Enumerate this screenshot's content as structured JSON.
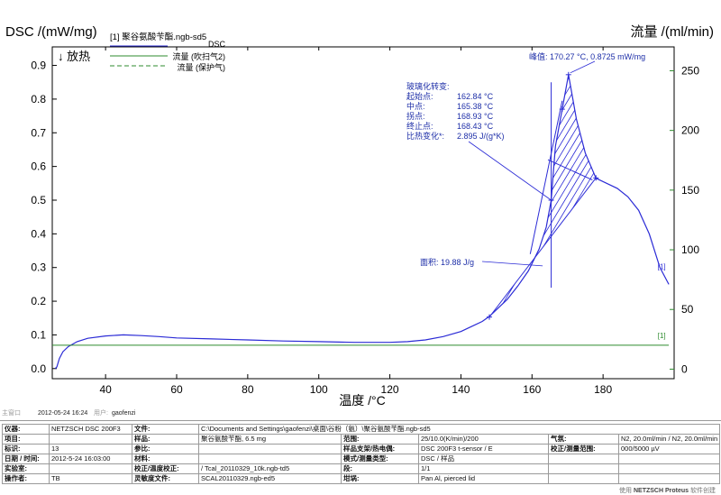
{
  "chart_data": {
    "type": "line",
    "title": "[1] 聚谷氨酸苄酯.ngb-sd5",
    "ylabel_left": "DSC /(mW/mg)",
    "ylabel_right": "流量 /(ml/min)",
    "xlabel": "温度 /°C",
    "exo_label": "↓ 放热",
    "xlim": [
      25,
      200
    ],
    "ylim_left": [
      -0.03,
      0.955
    ],
    "ylim_right": [
      -8,
      270
    ],
    "x_ticks": [
      40,
      60,
      80,
      100,
      120,
      140,
      160,
      180
    ],
    "y_ticks_left": [
      0.0,
      0.1,
      0.2,
      0.3,
      0.4,
      0.5,
      0.6,
      0.7,
      0.8,
      0.9
    ],
    "y_ticks_left_labels": [
      "0.0",
      "0.1",
      "0.2",
      "0.3",
      "0.4",
      "0.5",
      "0.6",
      "0.7",
      "0.8",
      "0.9"
    ],
    "y_ticks_right": [
      0,
      50,
      100,
      150,
      200,
      250
    ],
    "legend": [
      {
        "name": "DSC",
        "style": "solid",
        "color": "#2b2bd6"
      },
      {
        "name": "流量 (吹扫气2)",
        "style": "solid",
        "color": "#2e8b2e"
      },
      {
        "name": "流量 (保护气)",
        "style": "dashed",
        "color": "#2e8b2e"
      }
    ],
    "series": [
      {
        "name": "DSC",
        "x": [
          25.8,
          26.3,
          27,
          28,
          29.5,
          32,
          35,
          40,
          45,
          50,
          55,
          60,
          70,
          80,
          90,
          100,
          110,
          120,
          125,
          130,
          135,
          140,
          143,
          146,
          148,
          150,
          153,
          156,
          159,
          162,
          164,
          165.4,
          166,
          166.6,
          168.5,
          170.27,
          172.5,
          175,
          178,
          181,
          184,
          187,
          190,
          193,
          196,
          198.5
        ],
        "y": [
          0.0,
          0.005,
          0.03,
          0.05,
          0.065,
          0.08,
          0.09,
          0.097,
          0.1,
          0.098,
          0.095,
          0.091,
          0.088,
          0.085,
          0.082,
          0.08,
          0.078,
          0.078,
          0.08,
          0.085,
          0.095,
          0.11,
          0.125,
          0.14,
          0.155,
          0.175,
          0.205,
          0.245,
          0.29,
          0.355,
          0.42,
          0.5,
          0.58,
          0.66,
          0.77,
          0.8725,
          0.74,
          0.64,
          0.565,
          0.55,
          0.535,
          0.51,
          0.47,
          0.4,
          0.3,
          0.25
        ]
      },
      {
        "name": "流量 (吹扫气2)",
        "x": [
          25,
          198.5
        ],
        "y": [
          20,
          20
        ]
      }
    ],
    "baseline": {
      "x": [
        148,
        178
      ],
      "y": [
        0.153,
        0.566
      ]
    },
    "tg_step_line": {
      "x": [
        159.5,
        168.5
      ],
      "y": [
        0.34,
        0.795
      ]
    },
    "tangent_upper": {
      "x": [
        164.5,
        177
      ],
      "y": [
        0.62,
        0.56
      ]
    },
    "vertical_marker": {
      "x": [
        165.4,
        165.4
      ],
      "y": [
        0.24,
        0.85
      ]
    },
    "line_markers": [
      {
        "x": 148.0,
        "y": 0.153
      },
      {
        "x": 178.0,
        "y": 0.566
      },
      {
        "x": 170.27,
        "y": 0.8725
      },
      {
        "x": 165.4,
        "y": 0.5
      },
      {
        "x": 168.5,
        "y": 0.77
      }
    ],
    "right_end_labels": [
      {
        "text": "[1]",
        "x": 196.5,
        "y": 0.295,
        "color": "#2b2bd6"
      },
      {
        "text": "[1]",
        "x": 196.5,
        "y": 0.09,
        "color": "#2e8b2e"
      }
    ],
    "annotations": {
      "peak": "峰值: 170.27 °C, 0.8725 mW/mg",
      "area": "面积: 19.88 J/g",
      "tg_title": "玻璃化转变:",
      "tg_rows": [
        {
          "label": "起始点:",
          "value": "162.84 °C"
        },
        {
          "label": "中点:",
          "value": "165.38 °C"
        },
        {
          "label": "拐点:",
          "value": "168.93 °C"
        },
        {
          "label": "终止点:",
          "value": "168.43 °C"
        },
        {
          "label": "比热变化*:",
          "value": "2.895 J/(g*K)"
        }
      ]
    }
  },
  "meta_line": {
    "created_label": "主窗口",
    "date": "2012-05-24 16:24",
    "user_label": "用户:",
    "user": "gaofenzi"
  },
  "info": {
    "r1": {
      "k1": "仪器:",
      "v1": "NETZSCH DSC 200F3",
      "k2": "文件:",
      "v2": "C:\\Documents and Settings\\gaofenzi\\桌面\\谷粉（氨）\\聚谷氨酸苄酯.ngb-sd5"
    },
    "rows": [
      [
        "项目:",
        "",
        "样品:",
        "聚谷氨酸苄酯, 6.5 mg",
        "范围:",
        "25/10.0(K/min)/200",
        "气氛:",
        "N2, 20.0ml/min / N2, 20.0ml/min"
      ],
      [
        "标识:",
        "13",
        "参比:",
        "",
        "样品支架/热电偶:",
        "DSC 200F3 t-sensor / E",
        "校正/测量范围:",
        "000/5000 µV"
      ],
      [
        "日期 / 时间:",
        "2012-5-24 16:03:00",
        "材料:",
        "",
        "模式/测量类型:",
        "DSC / 样品",
        "",
        ""
      ],
      [
        "实验室:",
        "",
        "校正/温度校正:",
        "/ Tcal_20110329_10k.ngb-td5",
        "段:",
        "1/1",
        "",
        ""
      ],
      [
        "操作者:",
        "TB",
        "灵敏度文件:",
        "SCAL20110329.ngb-ed5",
        "坩埚:",
        "Pan Al, pierced lid",
        "",
        ""
      ]
    ]
  },
  "brand": {
    "prefix": "使用",
    "name": "NETZSCH Proteus",
    "suffix": "软件创建"
  },
  "colors": {
    "dsc": "#2b2bd6",
    "flow": "#2e8b2e",
    "axis_left": "#000000",
    "axis_right": "#2e8b2e"
  }
}
